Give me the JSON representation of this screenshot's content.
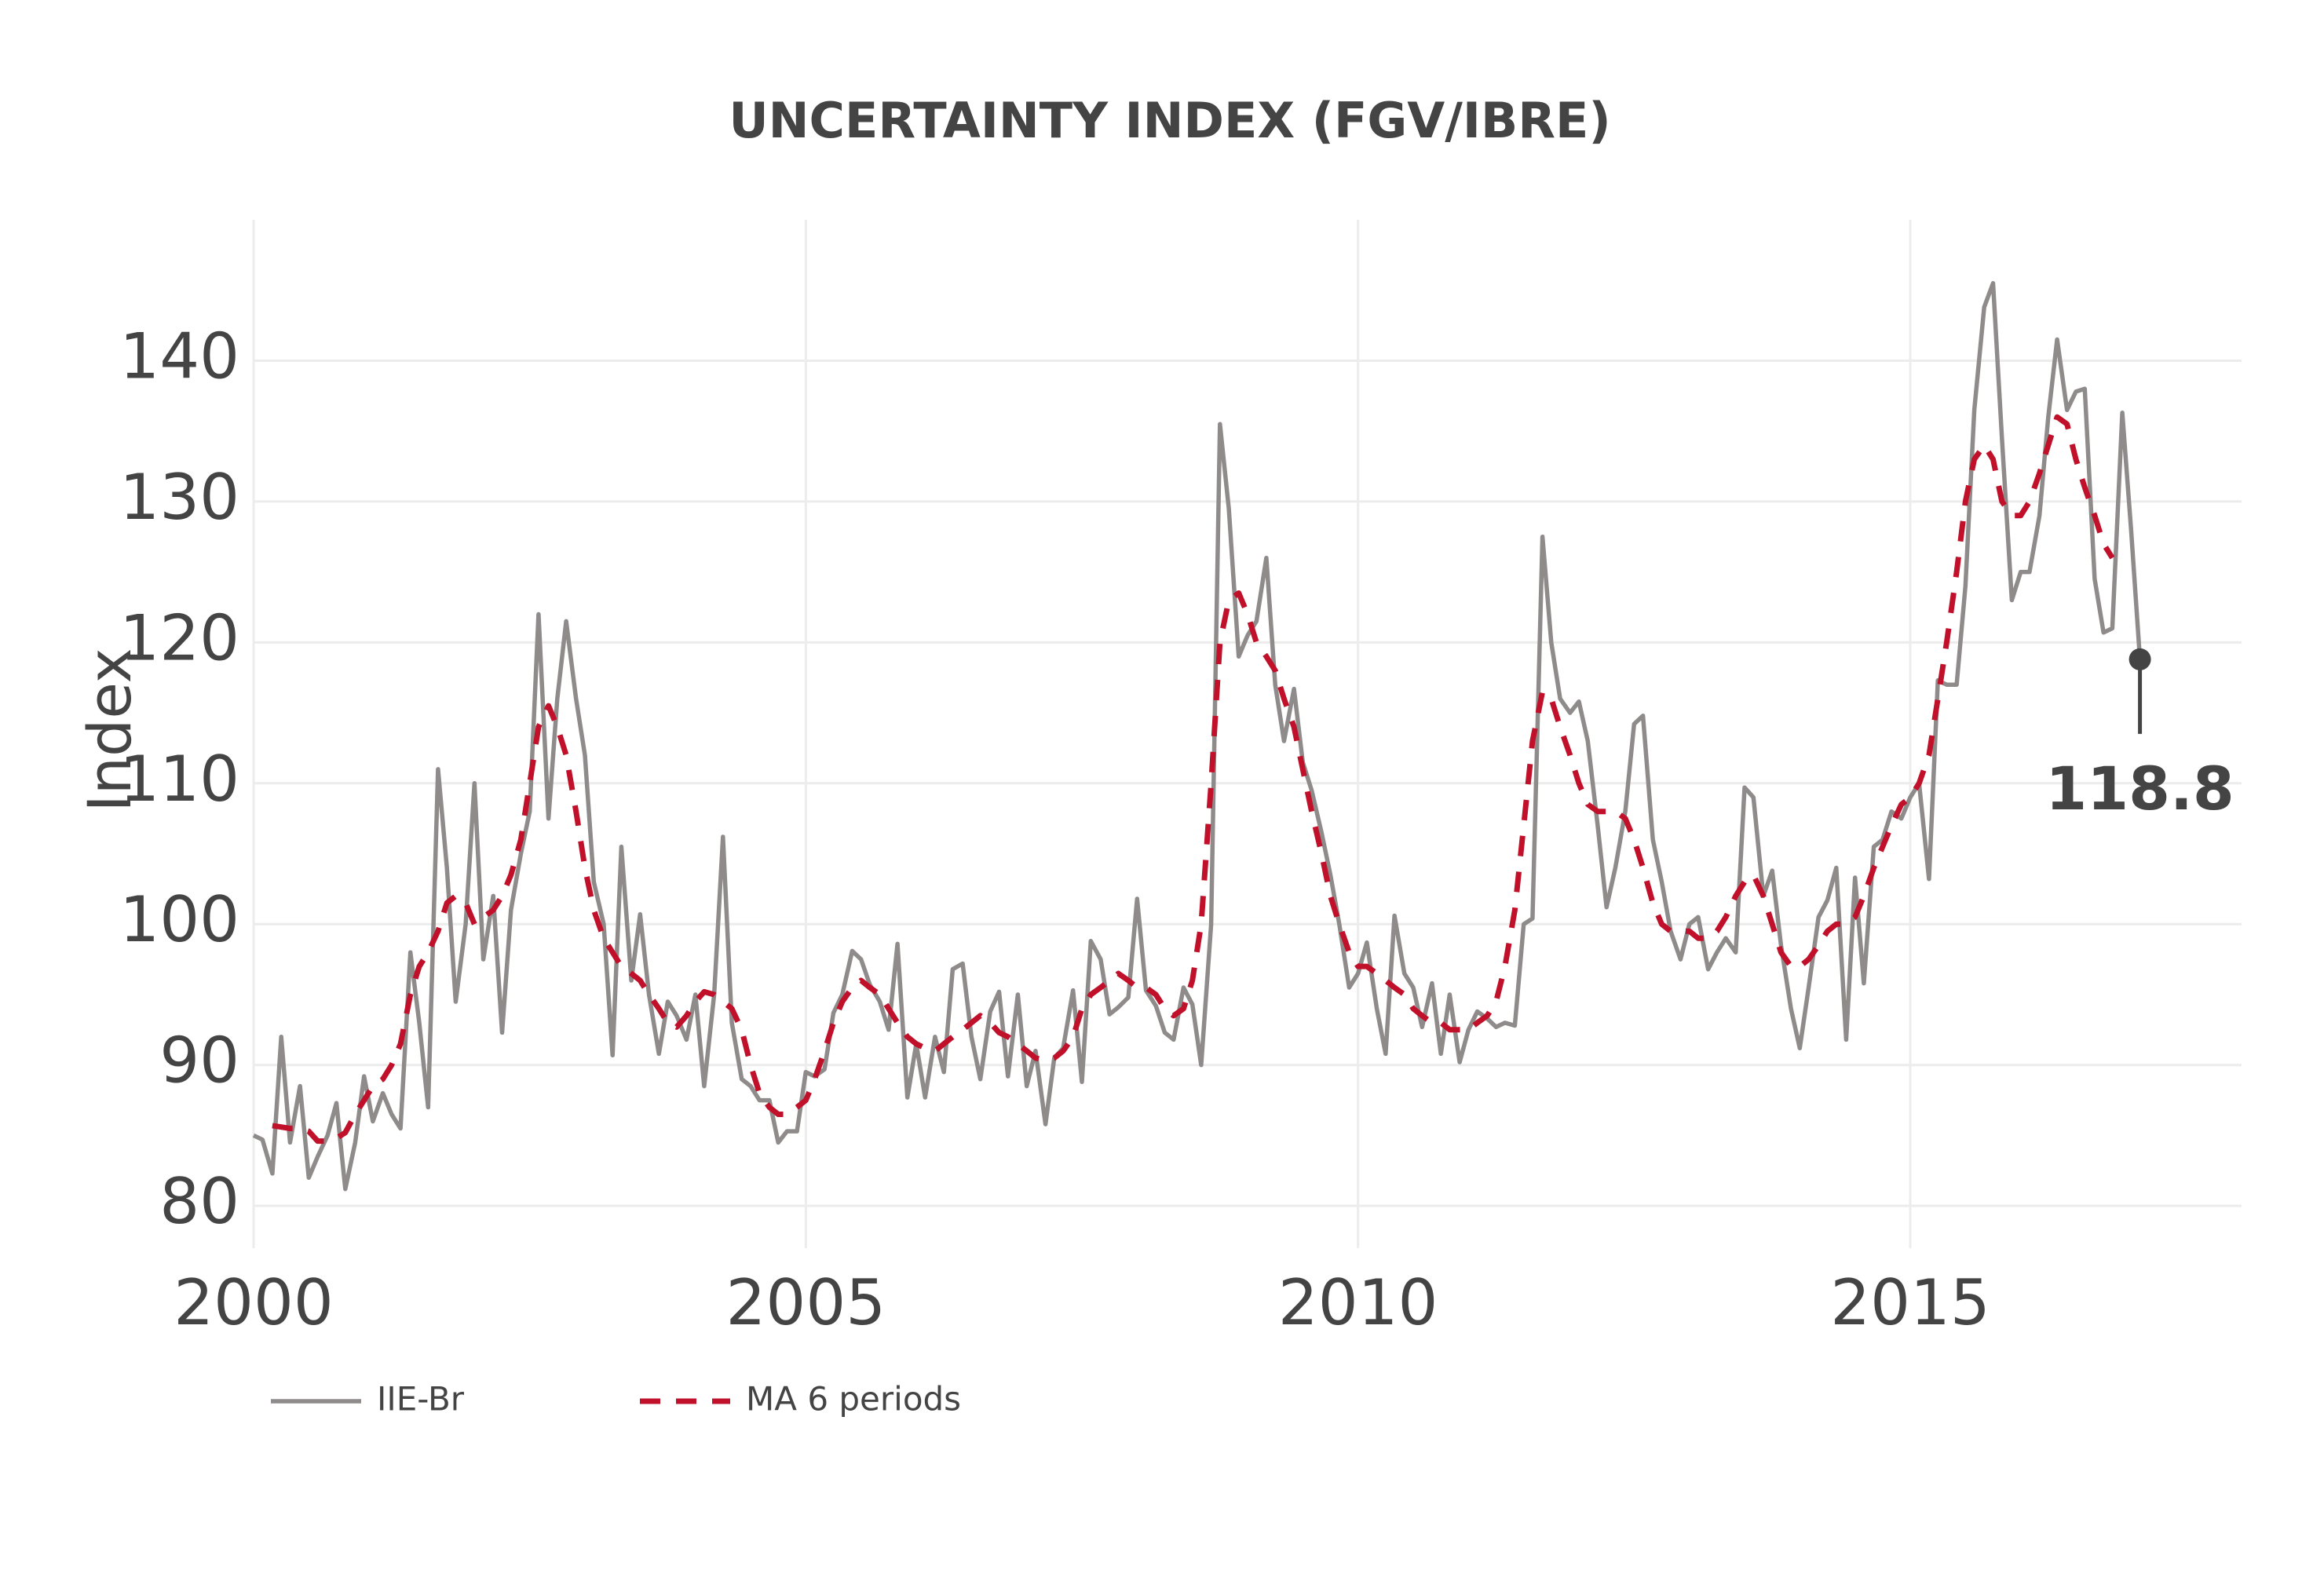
{
  "chart_data": {
    "type": "line",
    "title": "UNCERTAINTY INDEX (FGV/IBRE)",
    "y_label": "Index",
    "x": [
      2000,
      2000.08,
      2000.17,
      2000.25,
      2000.33,
      2000.42,
      2000.5,
      2000.58,
      2000.67,
      2000.75,
      2000.83,
      2000.92,
      2001,
      2001.08,
      2001.17,
      2001.25,
      2001.33,
      2001.42,
      2001.5,
      2001.58,
      2001.67,
      2001.75,
      2001.83,
      2001.92,
      2002,
      2002.08,
      2002.17,
      2002.25,
      2002.33,
      2002.42,
      2002.5,
      2002.58,
      2002.67,
      2002.75,
      2002.83,
      2002.92,
      2003,
      2003.08,
      2003.17,
      2003.25,
      2003.33,
      2003.42,
      2003.5,
      2003.58,
      2003.67,
      2003.75,
      2003.83,
      2003.92,
      2004,
      2004.08,
      2004.17,
      2004.25,
      2004.33,
      2004.42,
      2004.5,
      2004.58,
      2004.67,
      2004.75,
      2004.83,
      2004.92,
      2005,
      2005.08,
      2005.17,
      2005.25,
      2005.33,
      2005.42,
      2005.5,
      2005.58,
      2005.67,
      2005.75,
      2005.83,
      2005.92,
      2006,
      2006.08,
      2006.17,
      2006.25,
      2006.33,
      2006.42,
      2006.5,
      2006.58,
      2006.67,
      2006.75,
      2006.83,
      2006.92,
      2007,
      2007.08,
      2007.17,
      2007.25,
      2007.33,
      2007.42,
      2007.5,
      2007.58,
      2007.67,
      2007.75,
      2007.83,
      2007.92,
      2008,
      2008.08,
      2008.17,
      2008.25,
      2008.33,
      2008.42,
      2008.5,
      2008.58,
      2008.67,
      2008.75,
      2008.83,
      2008.92,
      2009,
      2009.08,
      2009.17,
      2009.25,
      2009.33,
      2009.42,
      2009.5,
      2009.58,
      2009.67,
      2009.75,
      2009.83,
      2009.92,
      2010,
      2010.08,
      2010.17,
      2010.25,
      2010.33,
      2010.42,
      2010.5,
      2010.58,
      2010.67,
      2010.75,
      2010.83,
      2010.92,
      2011,
      2011.08,
      2011.17,
      2011.25,
      2011.33,
      2011.42,
      2011.5,
      2011.58,
      2011.67,
      2011.75,
      2011.83,
      2011.92,
      2012,
      2012.08,
      2012.17,
      2012.25,
      2012.33,
      2012.42,
      2012.5,
      2012.58,
      2012.67,
      2012.75,
      2012.83,
      2012.92,
      2013,
      2013.08,
      2013.17,
      2013.25,
      2013.33,
      2013.42,
      2013.5,
      2013.58,
      2013.67,
      2013.75,
      2013.83,
      2013.92,
      2014,
      2014.08,
      2014.17,
      2014.25,
      2014.33,
      2014.42,
      2014.5,
      2014.58,
      2014.67,
      2014.75,
      2014.83,
      2014.92,
      2015,
      2015.08,
      2015.17,
      2015.25,
      2015.33,
      2015.42,
      2015.5,
      2015.58,
      2015.67,
      2015.75,
      2015.83,
      2015.92,
      2016,
      2016.08,
      2016.17,
      2016.25,
      2016.33,
      2016.42,
      2016.5,
      2016.58,
      2016.67,
      2016.75,
      2016.83,
      2016.92,
      2017,
      2017.08
    ],
    "series": [
      {
        "name": "IIE-Br",
        "color": "#8f8b8b",
        "dash": false,
        "values": [
          85,
          84.7,
          82.3,
          92,
          84.5,
          88.5,
          82,
          83.5,
          85,
          87.3,
          81.2,
          84.5,
          89.2,
          86,
          88,
          86.5,
          85.5,
          98,
          93,
          87,
          111,
          104,
          94.5,
          100,
          110,
          97.5,
          102,
          92.3,
          101,
          105,
          108,
          122,
          107.5,
          116,
          121.5,
          116,
          112,
          103,
          100,
          90.7,
          105.5,
          96,
          100.7,
          95,
          90.8,
          94.5,
          93.5,
          91.8,
          95,
          88.5,
          95,
          106.2,
          93,
          89,
          88.5,
          87.5,
          87.5,
          84.5,
          85.3,
          85.3,
          89.5,
          89.2,
          89.7,
          93.7,
          95,
          98.1,
          97.5,
          95.7,
          94.5,
          92.5,
          98.6,
          87.7,
          91.5,
          87.7,
          92,
          89.5,
          96.8,
          97.2,
          92,
          89,
          93.8,
          95.2,
          89.2,
          95,
          88.5,
          91,
          85.8,
          90.5,
          91.2,
          95.3,
          88.8,
          98.8,
          97.5,
          93.6,
          94.1,
          94.8,
          101.8,
          95.3,
          94.2,
          92.3,
          91.8,
          95.5,
          94.3,
          90,
          100,
          135.5,
          129.5,
          119,
          120.5,
          121.5,
          126,
          117,
          113,
          116.7,
          111.5,
          109.5,
          106.5,
          103.5,
          100,
          95.5,
          96.5,
          98.7,
          94,
          90.8,
          100.6,
          96.5,
          95.5,
          92.7,
          95.8,
          90.8,
          95,
          90.2,
          92.5,
          93.8,
          93.3,
          92.7,
          93,
          92.8,
          100,
          100.4,
          127.5,
          120,
          116,
          115,
          115.8,
          113,
          107,
          101.2,
          104,
          108,
          114.2,
          114.8,
          106,
          103,
          99.5,
          97.5,
          100,
          100.5,
          96.8,
          98,
          99,
          98,
          109.7,
          109,
          102,
          103.8,
          98.5,
          94,
          91.2,
          95.5,
          100.5,
          101.7,
          104,
          91.8,
          103.3,
          95.8,
          105.5,
          106,
          108,
          107.5,
          109,
          110,
          103.2,
          117.3,
          117,
          117,
          124,
          136.5,
          143.8,
          145.5,
          134.5,
          123,
          125,
          125,
          129,
          136,
          141.5,
          136.5,
          137.8,
          138,
          124.5,
          120.7,
          121,
          136.3,
          128,
          118.8
        ]
      },
      {
        "name": "MA 6 periods",
        "color": "#c0102a",
        "dash": true,
        "values": [
          null,
          null,
          85.7,
          85.6,
          85.5,
          85.5,
          85.3,
          84.6,
          84.6,
          84.8,
          85.2,
          86.5,
          87.5,
          88.5,
          89,
          90,
          91.5,
          95,
          97,
          98,
          99.5,
          101.5,
          102,
          101.5,
          100,
          100.5,
          101,
          102,
          103.5,
          106,
          110,
          114,
          115.5,
          114,
          112,
          108,
          104,
          101,
          99,
          98,
          97,
          96.5,
          96,
          95,
          94,
          93,
          92.7,
          93.5,
          94.5,
          95.2,
          95,
          94.5,
          94,
          92.5,
          90,
          88,
          87,
          86.5,
          86.5,
          87,
          87.5,
          89,
          91,
          93,
          94.5,
          95.5,
          96,
          95.5,
          95,
          94,
          93,
          92,
          91.5,
          91.2,
          91,
          91.5,
          92,
          92.5,
          93,
          93.5,
          93,
          92.3,
          92,
          91.5,
          91,
          90.5,
          90.3,
          90.5,
          91,
          92,
          94,
          95,
          95.5,
          96,
          96.5,
          96,
          95.5,
          95.5,
          95,
          94,
          93.5,
          94,
          96,
          100,
          110,
          120,
          123,
          123.5,
          122,
          120,
          119,
          118,
          116,
          114,
          111,
          108,
          105,
          102,
          100,
          98,
          97,
          97,
          96.5,
          96,
          95.5,
          95,
          94,
          93.5,
          93,
          93,
          92.5,
          92.5,
          92.5,
          93,
          93.5,
          94.5,
          97,
          101,
          107,
          113,
          116.5,
          116,
          114,
          112,
          110,
          108.5,
          108,
          108,
          108,
          107.5,
          106,
          104,
          101.5,
          100,
          99.5,
          99.5,
          99.5,
          99,
          99,
          99.5,
          100.5,
          102,
          103,
          103.5,
          102,
          100,
          98,
          97,
          97,
          97.5,
          98.5,
          99.5,
          100,
          100,
          100.5,
          102,
          104,
          105.5,
          107,
          108.5,
          109,
          110,
          112,
          116,
          120,
          125,
          130,
          133,
          134,
          133,
          130,
          129,
          129,
          130,
          132,
          134,
          136,
          135.5,
          133,
          131,
          129,
          127,
          126,
          null,
          null,
          null
        ]
      }
    ],
    "xlim": [
      2000,
      2018
    ],
    "xticks": [
      2000,
      2005,
      2010,
      2015
    ],
    "ylim": [
      77,
      150
    ],
    "yticks": [
      80,
      90,
      100,
      110,
      120,
      130,
      140
    ],
    "grid": true,
    "annotate_last": true,
    "legend": "bottom-left"
  }
}
